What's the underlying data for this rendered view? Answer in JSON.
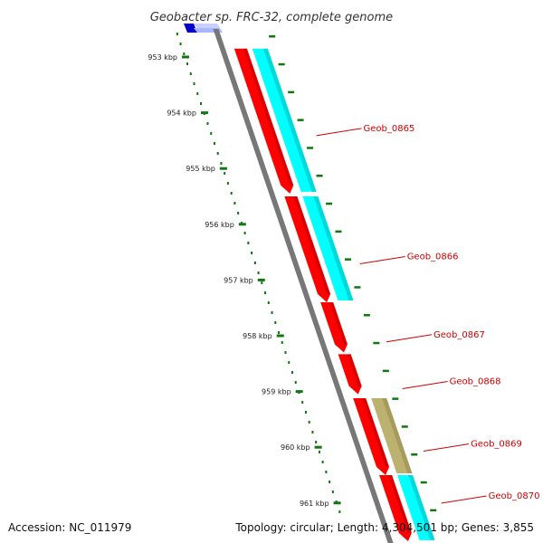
{
  "title": "Geobacter sp. FRC-32, complete genome",
  "footer": {
    "accession": "Accession: NC_011979",
    "stats": "Topology: circular; Length: 4,304,501 bp; Genes: 3,855"
  },
  "ruler": {
    "unit": "kbp",
    "ticks": [
      {
        "kbp": 953,
        "label": "953 kbp"
      },
      {
        "kbp": 954,
        "label": "954 kbp"
      },
      {
        "kbp": 955,
        "label": "955 kbp"
      },
      {
        "kbp": 956,
        "label": "956 kbp"
      },
      {
        "kbp": 957,
        "label": "957 kbp"
      },
      {
        "kbp": 958,
        "label": "958 kbp"
      },
      {
        "kbp": 959,
        "label": "959 kbp"
      },
      {
        "kbp": 960,
        "label": "960 kbp"
      },
      {
        "kbp": 961,
        "label": "961 kbp"
      }
    ]
  },
  "colors": {
    "cds": "#ff0000",
    "cds_dark": "#bb0000",
    "cog_cyan": "#00ffff",
    "cog_cyan_dark": "#00aaaa",
    "cog_olive": "#bdb16f",
    "cog_olive_dark": "#8a7f48",
    "blue_track": "#0000cc",
    "ruler": "#117711",
    "backbone": "#777777",
    "label": "#cc0000"
  },
  "genes": [
    {
      "label": "Geob_0865",
      "start_kbp": 952.85,
      "end_kbp": 955.45,
      "cog": "cyan"
    },
    {
      "label": "Geob_0866",
      "start_kbp": 955.5,
      "end_kbp": 957.4,
      "cog": "cyan"
    },
    {
      "label": "Geob_0867",
      "start_kbp": 957.4,
      "end_kbp": 958.3,
      "cog": ""
    },
    {
      "label": "Geob_0868",
      "start_kbp": 958.33,
      "end_kbp": 959.05,
      "cog": ""
    },
    {
      "label": "Geob_0869",
      "start_kbp": 959.12,
      "end_kbp": 960.5,
      "cog": "olive"
    },
    {
      "label": "Geob_0870",
      "start_kbp": 960.5,
      "end_kbp": 961.7,
      "cog": "cyan"
    }
  ]
}
